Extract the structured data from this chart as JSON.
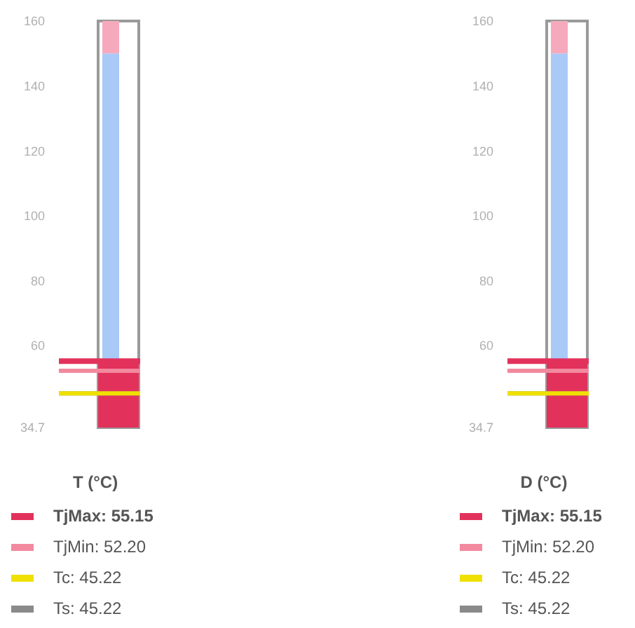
{
  "chart_data": [
    {
      "type": "bar",
      "legend": "bottom",
      "legend_title": "T (°C)",
      "categories": [
        null
      ],
      "ylim": [
        34.7,
        160
      ],
      "yticks": [
        {
          "value": 34.7,
          "label": "34.7"
        },
        60,
        80,
        100,
        120,
        140,
        160
      ],
      "series": [
        {
          "color": "#e2325c",
          "values": [
            55.15
          ]
        }
      ],
      "bands": [
        {
          "axis": "y",
          "from": 34.7,
          "to": 150,
          "color": "#a9c9f7"
        },
        {
          "axis": "y",
          "from": 150,
          "to": 160,
          "color": "#f6a9bd"
        }
      ],
      "ref_lines": [
        {
          "axis": "y",
          "value": 55.15,
          "label": "TjMax: 55.15",
          "color": "#e2325c"
        },
        {
          "axis": "y",
          "value": 52.2,
          "label": "TjMin: 52.20",
          "color": "#f2899f"
        },
        {
          "axis": "y",
          "value": 45.22,
          "label": "Tc: 45.22",
          "color": "#f0e000"
        },
        {
          "axis": "y",
          "value": 45.22,
          "label": "Ts: 45.22",
          "color": "#8a8a8a"
        }
      ]
    },
    {
      "type": "bar",
      "legend": "bottom",
      "legend_title": "D (°C)",
      "categories": [
        null
      ],
      "ylim": [
        34.7,
        160
      ],
      "yticks": [
        {
          "value": 34.7,
          "label": "34.7"
        },
        60,
        80,
        100,
        120,
        140,
        160
      ],
      "series": [
        {
          "color": "#e2325c",
          "values": [
            55.15
          ]
        }
      ],
      "bands": [
        {
          "axis": "y",
          "from": 34.7,
          "to": 150,
          "color": "#a9c9f7"
        },
        {
          "axis": "y",
          "from": 150,
          "to": 160,
          "color": "#f6a9bd"
        }
      ],
      "ref_lines": [
        {
          "axis": "y",
          "value": 55.15,
          "label": "TjMax: 55.15",
          "color": "#e2325c"
        },
        {
          "axis": "y",
          "value": 52.2,
          "label": "TjMin: 52.20",
          "color": "#f2899f"
        },
        {
          "axis": "y",
          "value": 45.22,
          "label": "Tc: 45.22",
          "color": "#f0e000"
        },
        {
          "axis": "y",
          "value": 45.22,
          "label": "Ts: 45.22",
          "color": "#8a8a8a"
        }
      ]
    }
  ]
}
